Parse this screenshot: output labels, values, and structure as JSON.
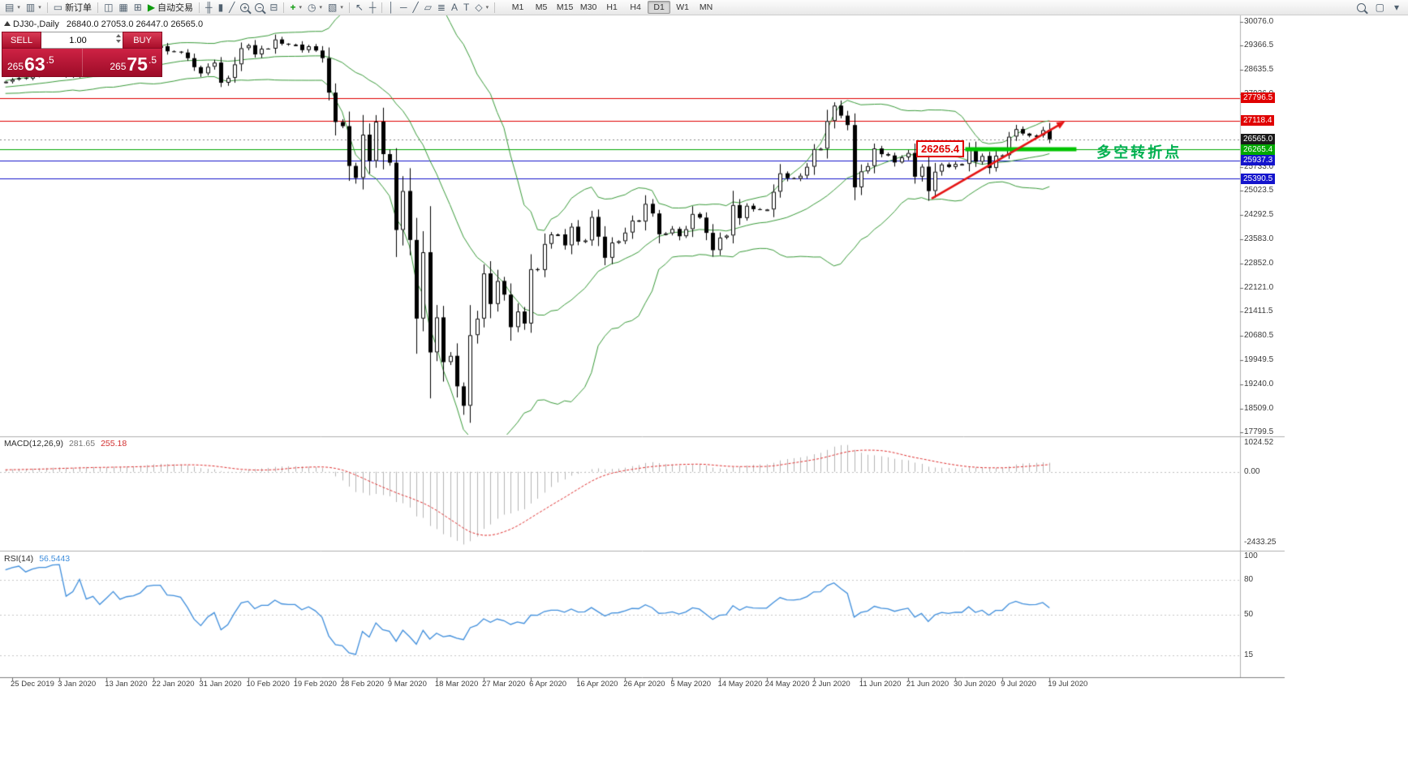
{
  "toolbar": {
    "caret_glyph": "▾",
    "left_items": [
      {
        "name": "new-chart-button",
        "glyph": "▤",
        "caret": true
      },
      {
        "name": "chart-profiles-button",
        "glyph": "▥",
        "caret": true
      },
      {
        "sep": true
      },
      {
        "name": "new-order-button",
        "glyph": "▭",
        "label": "新订单"
      },
      {
        "sep": true
      },
      {
        "name": "market-watch-button",
        "glyph": "◫"
      },
      {
        "name": "data-window-button",
        "glyph": "▦"
      },
      {
        "name": "navigator-button",
        "glyph": "⊞"
      },
      {
        "name": "algo-trading-button",
        "glyph": "▶",
        "glyph_color": "#0f9b0f",
        "label": "自动交易"
      },
      {
        "sep": true
      },
      {
        "name": "bar-chart-button",
        "glyph": "╫"
      },
      {
        "name": "candle-chart-button",
        "glyph": "▮"
      },
      {
        "name": "line-chart-button",
        "glyph": "╱"
      },
      {
        "name": "zoom-in-button",
        "mag": "+"
      },
      {
        "name": "zoom-out-button",
        "mag": "−"
      },
      {
        "name": "tile-windows-button",
        "glyph": "⊟"
      },
      {
        "sep": true
      },
      {
        "name": "indicators-button",
        "glyph": "+",
        "glyph_color": "#0f9b0f",
        "caret": true
      },
      {
        "name": "period-button",
        "glyph": "◷",
        "caret": true
      },
      {
        "name": "template-button",
        "glyph": "▧",
        "caret": true
      },
      {
        "sep": true
      },
      {
        "name": "cursor-button",
        "glyph": "↖"
      },
      {
        "name": "crosshair-button",
        "glyph": "┼"
      },
      {
        "sep": true
      },
      {
        "name": "vertical-line-button",
        "glyph": "│"
      },
      {
        "name": "horizontal-line-button",
        "glyph": "─"
      },
      {
        "name": "trendline-button",
        "glyph": "╱"
      },
      {
        "name": "channel-button",
        "glyph": "▱"
      },
      {
        "name": "fibonacci-button",
        "glyph": "≣"
      },
      {
        "name": "text-button",
        "glyph": "A"
      },
      {
        "name": "label-button",
        "glyph": "T"
      },
      {
        "name": "shapes-button",
        "glyph": "◇",
        "caret": true
      },
      {
        "sep": true
      }
    ],
    "timeframes": [
      "M1",
      "M5",
      "M15",
      "M30",
      "H1",
      "H4",
      "D1",
      "W1",
      "MN"
    ],
    "active_timeframe": "D1",
    "right_items": [
      {
        "name": "toolbar-search-icon",
        "mag": ""
      },
      {
        "name": "toolbar-window-icon",
        "glyph": "▢"
      },
      {
        "name": "toolbar-more-icon",
        "glyph": "▾"
      }
    ]
  },
  "header": {
    "symbol": "DJ30-,Daily",
    "ohlc": "26840.0 27053.0 26447.0 26565.0"
  },
  "one_click": {
    "sell_label": "SELL",
    "buy_label": "BUY",
    "volume": "1.00",
    "sell_price": {
      "prefix": "265",
      "big": "63",
      "suffix": ".5"
    },
    "buy_price": {
      "prefix": "265",
      "big": "75",
      "suffix": ".5"
    }
  },
  "annotations": {
    "boxed_price": {
      "text": "26265.4",
      "bar": 139.2,
      "price": 26265.4
    },
    "turning_point": {
      "text": "多空转折点",
      "bar": 162,
      "price": 26265.4
    },
    "support_segment": {
      "price": 26265.4,
      "from_bar": 142.5,
      "to_bar": 159
    },
    "trend_arrow": {
      "from_bar": 137.5,
      "from_price": 24790,
      "to_bar": 157.3,
      "to_price": 27095
    }
  },
  "price_axis": {
    "ticks": [
      "30076.0",
      "29366.5",
      "28635.5",
      "27926.0",
      "25733.0",
      "25023.5",
      "24292.5",
      "23583.0",
      "22852.0",
      "22121.0",
      "21411.5",
      "20680.5",
      "19949.5",
      "19240.0",
      "18509.0",
      "17799.5"
    ],
    "tags": [
      {
        "label": "27796.5",
        "value": 27796.5,
        "type": "red"
      },
      {
        "label": "27118.4",
        "value": 27118.4,
        "type": "red"
      },
      {
        "label": "26565.0",
        "value": 26565.0,
        "type": "bid"
      },
      {
        "label": "26265.4",
        "value": 26265.4,
        "type": "green"
      },
      {
        "label": "25937.3",
        "value": 25937.3,
        "type": "blue"
      },
      {
        "label": "25390.5",
        "value": 25390.5,
        "type": "blue"
      }
    ]
  },
  "time_axis": {
    "labels": [
      "25 Dec 2019",
      "3 Jan 2020",
      "13 Jan 2020",
      "22 Jan 2020",
      "31 Jan 2020",
      "10 Feb 2020",
      "19 Feb 2020",
      "28 Feb 2020",
      "9 Mar 2020",
      "18 Mar 2020",
      "27 Mar 2020",
      "6 Apr 2020",
      "16 Apr 2020",
      "26 Apr 2020",
      "5 May 2020",
      "14 May 2020",
      "24 May 2020",
      "2 Jun 2020",
      "11 Jun 2020",
      "21 Jun 2020",
      "30 Jun 2020",
      "9 Jul 2020",
      "19 Jul 2020"
    ]
  },
  "macd_panel": {
    "title": "MACD(12,26,9)",
    "main_value": "281.65",
    "signal_value": "255.18",
    "scale_top": "1024.52",
    "scale_zero": "0.00",
    "scale_bottom": "-2433.25"
  },
  "rsi_panel": {
    "title": "RSI(14)",
    "value": "56.5443",
    "scale": [
      "100",
      "80",
      "50",
      "15"
    ],
    "levels": [
      80,
      50,
      15
    ]
  },
  "colors": {
    "band_green": "#3a9b3a",
    "bull": "#ffffff",
    "bear": "#000000",
    "outline": "#000000",
    "hist": "#b5b5b5",
    "signal": "#e03030",
    "rsi": "#3f8edc",
    "red": "#e00000",
    "blue": "#1414cc",
    "green": "#00a800",
    "bid": "#1a1a1a",
    "bid_line": "#888888",
    "thick_green": "#00c400",
    "arrow": "#e51414",
    "separator": "#b0b0b0",
    "axis": "#808080"
  },
  "chart_data": {
    "type": "candlestick",
    "symbol": "DJ30",
    "timeframe": "Daily",
    "y_range": [
      17727,
      30294
    ],
    "closes": [
      28290,
      28350,
      28400,
      28380,
      28455,
      28515,
      28515,
      28620,
      28645,
      28462,
      28538,
      28868,
      28635,
      28703,
      28583,
      28745,
      28956,
      28824,
      28907,
      28939,
      29030,
      29297,
      29348,
      29348,
      29196,
      29186,
      29160,
      28990,
      28722,
      28535,
      28734,
      28859,
      28256,
      28400,
      28807,
      29290,
      29380,
      29103,
      29277,
      29276,
      29551,
      29423,
      29398,
      29398,
      29232,
      29348,
      29220,
      28992,
      27961,
      27081,
      26958,
      25767,
      25409,
      26703,
      25917,
      27091,
      26121,
      25865,
      23851,
      25018,
      23553,
      21201,
      23186,
      20189,
      21237,
      19899,
      20087,
      19174,
      18592,
      20705,
      21200,
      22552,
      21637,
      22327,
      21917,
      20944,
      21413,
      21053,
      22680,
      22654,
      23434,
      23719,
      23719,
      23391,
      23950,
      23504,
      23538,
      24242,
      23651,
      23019,
      23476,
      23515,
      23775,
      24134,
      24102,
      24634,
      24346,
      23724,
      23750,
      23883,
      23665,
      23876,
      24331,
      24222,
      23765,
      23248,
      23625,
      23685,
      24597,
      24207,
      24576,
      24474,
      24465,
      24465,
      24995,
      25548,
      25401,
      25383,
      25475,
      25743,
      26270,
      26282,
      27111,
      27572,
      27272,
      26990,
      25128,
      25605,
      25763,
      26290,
      26120,
      26080,
      25871,
      26025,
      26156,
      25445,
      25746,
      25016,
      25596,
      25813,
      25735,
      25827,
      25827,
      26287,
      25890,
      26067,
      25706,
      26075,
      26086,
      26643,
      26870,
      26735,
      26672,
      26681,
      26840,
      26565
    ],
    "last_candle": {
      "open": 26840.0,
      "high": 27053.0,
      "low": 26447.0,
      "close": 26565.0
    },
    "indicators": {
      "bollinger": {
        "period": 20,
        "deviation": 2
      },
      "macd": {
        "fast": 12,
        "slow": 26,
        "signal": 9,
        "current_main": 281.65,
        "current_signal": 255.18
      },
      "rsi": {
        "period": 14,
        "current": 56.5443
      }
    }
  }
}
